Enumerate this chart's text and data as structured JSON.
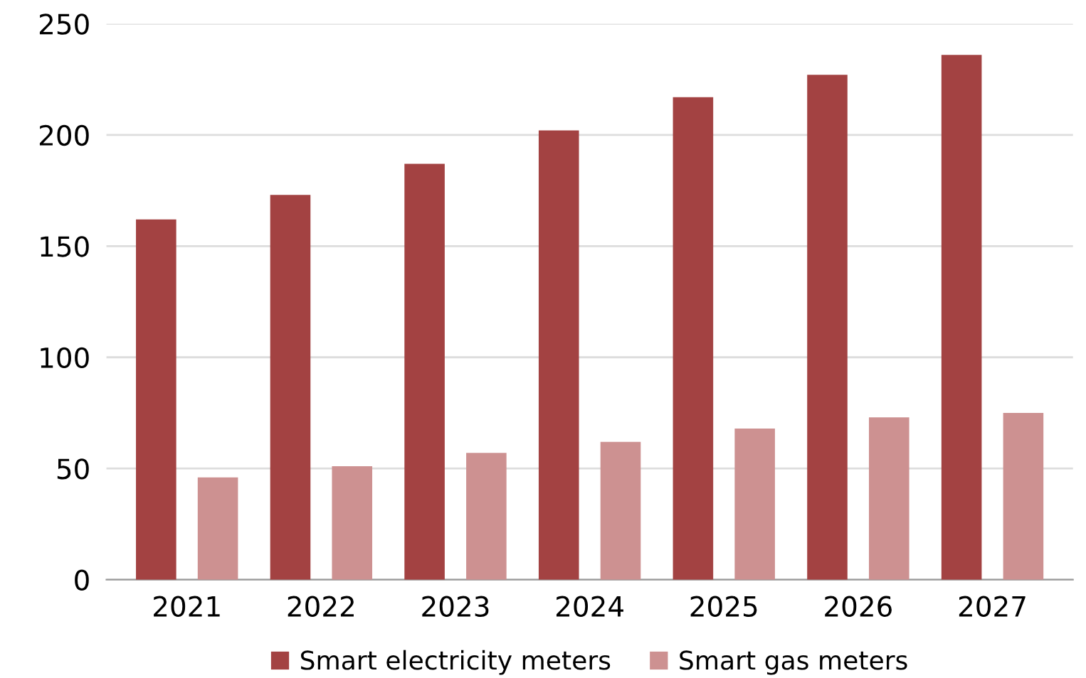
{
  "chart_data": {
    "type": "bar",
    "categories": [
      "2021",
      "2022",
      "2023",
      "2024",
      "2025",
      "2026",
      "2027"
    ],
    "series": [
      {
        "name": "Smart electricity meters",
        "color": "#a34242",
        "values": [
          162,
          173,
          187,
          202,
          217,
          227,
          236
        ]
      },
      {
        "name": "Smart gas meters",
        "color": "#cd9191",
        "values": [
          46,
          51,
          57,
          62,
          68,
          73,
          75
        ]
      }
    ],
    "ylim": [
      0,
      250
    ],
    "yticks": [
      0,
      50,
      100,
      150,
      200,
      250
    ],
    "grid": "y",
    "legend": "bottom"
  }
}
